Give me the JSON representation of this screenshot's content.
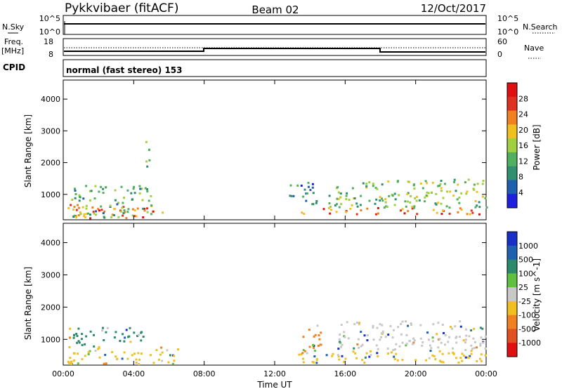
{
  "header": {
    "station": "Pykkvibaer (fitACF)",
    "beam": "Beam 02",
    "date": "12/Oct/2017"
  },
  "strip_nsky": {
    "left_label": "N.Sky",
    "right_label": "N.Search",
    "left_ticks": [
      "10^5",
      "10^0"
    ],
    "right_ticks": [
      "10^5",
      "10^0"
    ]
  },
  "strip_freq": {
    "left_label_1": "Freq.",
    "left_label_2": "[MHz]",
    "left_ticks": [
      "18",
      "8"
    ],
    "right_label": "Nave",
    "right_ticks": [
      "60",
      "0"
    ]
  },
  "cpid": {
    "label": "CPID",
    "mode": "normal (fast stereo) 153"
  },
  "colors": {
    "power_scale": [
      "#1f1fe0",
      "#1f5fb0",
      "#2f8f6f",
      "#4fb05f",
      "#a0d040",
      "#f0c020",
      "#f08020",
      "#e03020",
      "#e01010"
    ],
    "velocity_scale": [
      "#1a2fc8",
      "#2060b0",
      "#2a8a6a",
      "#60c040",
      "#c8c8c8",
      "#f0c020",
      "#f08020",
      "#e05020",
      "#e01010"
    ]
  },
  "chart_data": [
    {
      "type": "heatmap",
      "panel": "power",
      "ylabel": "Slant Range [km]",
      "yticks": [
        "1000",
        "2000",
        "3000",
        "4000"
      ],
      "ylim": [
        200,
        4600
      ],
      "colorbar_label": "Power [dB]",
      "colorbar_ticks": [
        "4",
        "8",
        "12",
        "16",
        "20",
        "24",
        "28"
      ],
      "clim": [
        0,
        32
      ],
      "regions": [
        {
          "t0": 0.2,
          "t1": 6.0,
          "r0": 250,
          "r1": 700,
          "level": 24
        },
        {
          "t0": 0.4,
          "t1": 5.0,
          "r0": 300,
          "r1": 1300,
          "level": 12
        },
        {
          "t0": 4.6,
          "t1": 5.0,
          "r0": 1800,
          "r1": 2700,
          "level": 12
        },
        {
          "t0": 13.3,
          "t1": 24.0,
          "r0": 400,
          "r1": 600,
          "level": 24
        },
        {
          "t0": 15.0,
          "t1": 24.0,
          "r0": 600,
          "r1": 1500,
          "level": 14
        },
        {
          "t0": 12.8,
          "t1": 14.6,
          "r0": 700,
          "r1": 1400,
          "level": 8
        }
      ]
    },
    {
      "type": "heatmap",
      "panel": "velocity",
      "xlabel": "Time UT",
      "xticks": [
        "00:00",
        "04:00",
        "08:00",
        "12:00",
        "16:00",
        "20:00",
        "00:00"
      ],
      "xlim": [
        0,
        24
      ],
      "ylabel": "Slant Range [km]",
      "yticks": [
        "1000",
        "2000",
        "3000",
        "4000"
      ],
      "ylim": [
        200,
        4600
      ],
      "colorbar_label": "Velocity [m s^-1]",
      "colorbar_ticks": [
        "1000",
        "500",
        "100",
        "25",
        "-25",
        "-100",
        "-500",
        "-1000"
      ],
      "regions": [
        {
          "t0": 0.2,
          "t1": 6.5,
          "r0": 250,
          "r1": 800,
          "level": -100
        },
        {
          "t0": 0.3,
          "t1": 4.5,
          "r0": 800,
          "r1": 1400,
          "level": 100
        },
        {
          "t0": 13.3,
          "t1": 24.0,
          "r0": 300,
          "r1": 700,
          "level": -100
        },
        {
          "t0": 15.5,
          "t1": 24.0,
          "r0": 700,
          "r1": 1600,
          "level": 0
        },
        {
          "t0": 13.5,
          "t1": 14.8,
          "r0": 600,
          "r1": 1500,
          "level": -500
        }
      ]
    }
  ]
}
